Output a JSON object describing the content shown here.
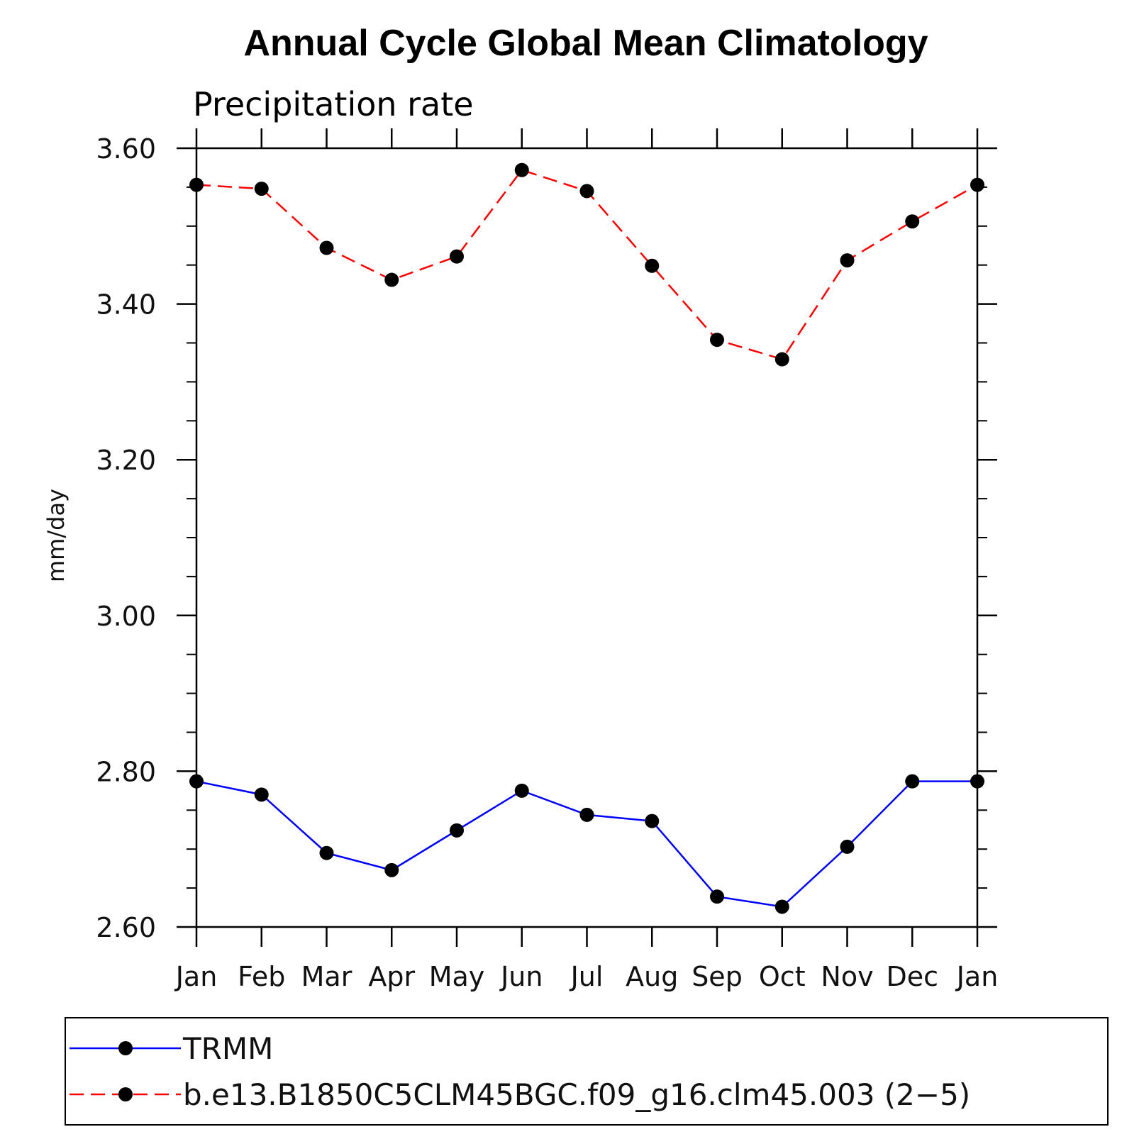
{
  "chart_data": {
    "type": "line",
    "title": "Annual Cycle Global Mean Climatology",
    "subtitle": "Precipitation rate",
    "xlabel": "",
    "ylabel": "mm/day",
    "categories": [
      "Jan",
      "Feb",
      "Mar",
      "Apr",
      "May",
      "Jun",
      "Jul",
      "Aug",
      "Sep",
      "Oct",
      "Nov",
      "Dec",
      "Jan"
    ],
    "ylim": [
      2.6,
      3.6
    ],
    "yticks": [
      "2.60",
      "2.80",
      "3.00",
      "3.20",
      "3.40",
      "3.60"
    ],
    "ytick_values": [
      2.6,
      2.8,
      3.0,
      3.2,
      3.4,
      3.6
    ],
    "y_minor_step": 0.05,
    "grid": false,
    "legend_position": "bottom",
    "series": [
      {
        "name": "TRMM",
        "color": "#0000ff",
        "dash": "solid",
        "marker": "circle",
        "values": [
          2.787,
          2.77,
          2.695,
          2.673,
          2.724,
          2.775,
          2.744,
          2.736,
          2.639,
          2.626,
          2.703,
          2.787,
          2.787
        ]
      },
      {
        "name": "b.e13.B1850C5CLM45BGC.f09_g16.clm45.003 (2−5)",
        "color": "#ff0000",
        "dash": "dashed",
        "marker": "circle",
        "values": [
          3.553,
          3.548,
          3.472,
          3.431,
          3.461,
          3.572,
          3.545,
          3.449,
          3.354,
          3.329,
          3.456,
          3.506,
          3.553
        ]
      }
    ]
  }
}
